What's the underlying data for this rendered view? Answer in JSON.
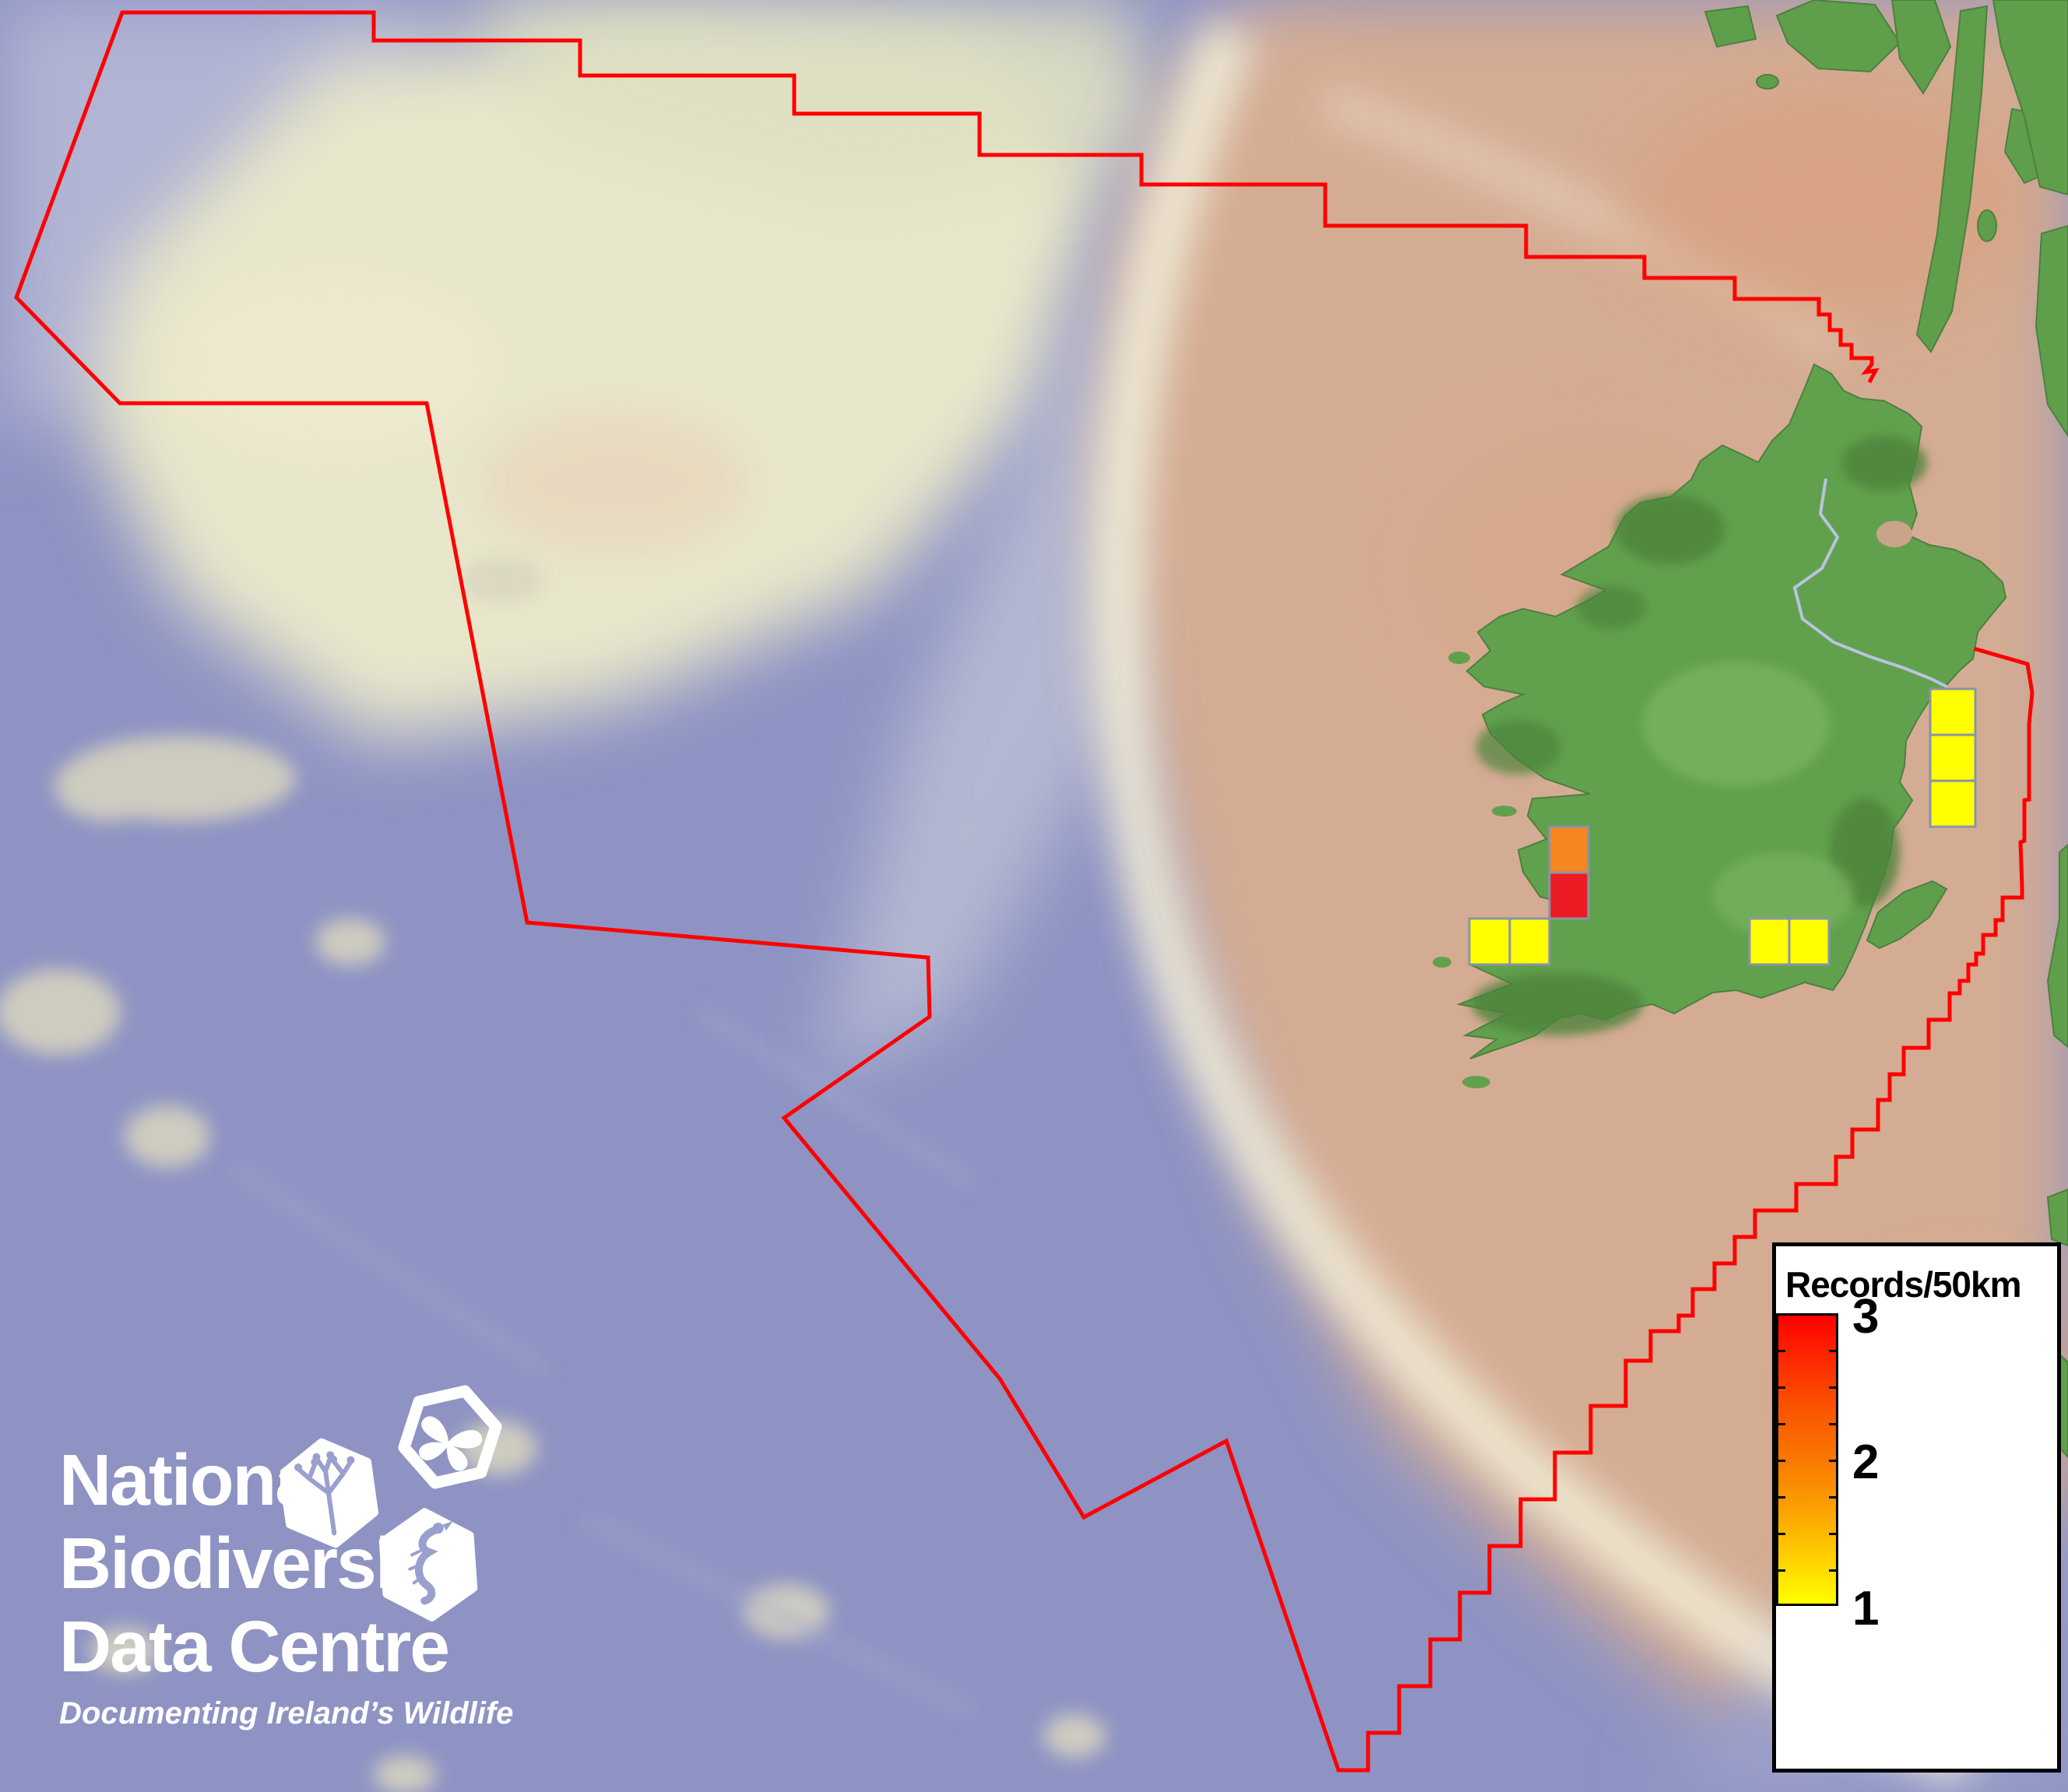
{
  "legend": {
    "title": "Records/50km",
    "max": "3",
    "mid": "2",
    "min": "1",
    "gradient_top_color": "#ff0000",
    "gradient_bottom_color": "#ffff00"
  },
  "logo": {
    "line1": "National",
    "line2": "Biodiversity",
    "line3": "Data Centre",
    "tagline": "Documenting Ireland’s Wildlife",
    "icons": [
      "plant-sprig",
      "butterfly",
      "seahorse"
    ]
  },
  "colors": {
    "boundary": "#ff0000",
    "land_green": "#61a14d",
    "shelf_tan": "#d4ac93",
    "deep_blue": "#8e93c3",
    "plateau_cream": "#e8e6ca",
    "grid_border": "#8a93a8",
    "value1": "#ffff00",
    "value2": "#f6871f",
    "value3": "#ed1c24"
  },
  "records_grid": {
    "cell_unit": "50km square",
    "cells": [
      {
        "x": 2479,
        "y": 885,
        "w": 58,
        "h": 59,
        "value": 1,
        "color": "#ffff00"
      },
      {
        "x": 2479,
        "y": 944,
        "w": 58,
        "h": 59,
        "value": 1,
        "color": "#ffff00"
      },
      {
        "x": 2479,
        "y": 1003,
        "w": 58,
        "h": 59,
        "value": 1,
        "color": "#ffff00"
      },
      {
        "x": 1990,
        "y": 1062,
        "w": 50,
        "h": 59,
        "value": 2,
        "color": "#f6871f"
      },
      {
        "x": 1990,
        "y": 1121,
        "w": 50,
        "h": 59,
        "value": 3,
        "color": "#ed1c24"
      },
      {
        "x": 1887,
        "y": 1180,
        "w": 52,
        "h": 59,
        "value": 1,
        "color": "#ffff00"
      },
      {
        "x": 1939,
        "y": 1180,
        "w": 51,
        "h": 59,
        "value": 1,
        "color": "#ffff00"
      },
      {
        "x": 2247,
        "y": 1180,
        "w": 51,
        "h": 59,
        "value": 1,
        "color": "#ffff00"
      },
      {
        "x": 2298,
        "y": 1180,
        "w": 51,
        "h": 59,
        "value": 1,
        "color": "#ffff00"
      }
    ]
  },
  "chart_data": {
    "type": "heatmap",
    "title": "Records/50km",
    "legend_position": "bottom-right",
    "scale": {
      "min": 1,
      "max": 3,
      "min_color": "#ffff00",
      "max_color": "#ff0000"
    },
    "series": [
      {
        "name": "records-per-50km-square",
        "values": [
          1,
          1,
          1,
          2,
          3,
          1,
          1,
          1,
          1
        ]
      }
    ]
  }
}
